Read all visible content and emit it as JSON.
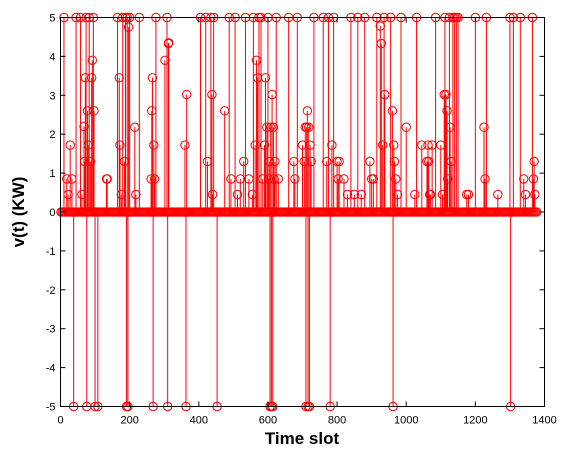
{
  "chart_data": {
    "type": "stem",
    "xlabel": "Time slot",
    "ylabel": "v(t) (KW)",
    "xlim": [
      0,
      1400
    ],
    "ylim": [
      -5,
      5
    ],
    "xticks": [
      "0",
      "200",
      "400",
      "600",
      "800",
      "1000",
      "1200",
      "1400"
    ],
    "yticks": [
      "-5",
      "-4",
      "-3",
      "-2",
      "-1",
      "0",
      "1",
      "2",
      "3",
      "4",
      "5"
    ],
    "grid": false,
    "color": "#ff0000",
    "marker": "open-circle",
    "x_range": [
      1,
      1380
    ],
    "baseline_value": 0,
    "stems": [
      {
        "x": 10,
        "v": 5
      },
      {
        "x": 18,
        "v": 0.85
      },
      {
        "x": 22,
        "v": 0.45
      },
      {
        "x": 28,
        "v": 1.72
      },
      {
        "x": 33,
        "v": 0.85
      },
      {
        "x": 38,
        "v": -5
      },
      {
        "x": 45,
        "v": 5
      },
      {
        "x": 58,
        "v": 5
      },
      {
        "x": 62,
        "v": 0.45
      },
      {
        "x": 68,
        "v": 2.2
      },
      {
        "x": 70,
        "v": 1.3
      },
      {
        "x": 72,
        "v": 3.45
      },
      {
        "x": 74,
        "v": 5
      },
      {
        "x": 76,
        "v": -5
      },
      {
        "x": 78,
        "v": 2.6
      },
      {
        "x": 80,
        "v": 1.72
      },
      {
        "x": 83,
        "v": 5
      },
      {
        "x": 87,
        "v": 1.3
      },
      {
        "x": 90,
        "v": 3.45
      },
      {
        "x": 92,
        "v": 3.9
      },
      {
        "x": 95,
        "v": 5
      },
      {
        "x": 97,
        "v": 2.6
      },
      {
        "x": 100,
        "v": -5
      },
      {
        "x": 108,
        "v": -5
      },
      {
        "x": 133,
        "v": 0.85
      },
      {
        "x": 135,
        "v": 0.85
      },
      {
        "x": 165,
        "v": 5
      },
      {
        "x": 170,
        "v": 3.45
      },
      {
        "x": 172,
        "v": 1.72
      },
      {
        "x": 176,
        "v": 0.45
      },
      {
        "x": 180,
        "v": 5
      },
      {
        "x": 185,
        "v": 1.3
      },
      {
        "x": 188,
        "v": 5
      },
      {
        "x": 191,
        "v": -5
      },
      {
        "x": 193,
        "v": 5
      },
      {
        "x": 195,
        "v": -5
      },
      {
        "x": 197,
        "v": 4.75
      },
      {
        "x": 200,
        "v": 5
      },
      {
        "x": 215,
        "v": 2.18
      },
      {
        "x": 218,
        "v": 0.45
      },
      {
        "x": 228,
        "v": 5
      },
      {
        "x": 262,
        "v": 0.85
      },
      {
        "x": 264,
        "v": 2.6
      },
      {
        "x": 266,
        "v": 3.45
      },
      {
        "x": 268,
        "v": -5
      },
      {
        "x": 270,
        "v": 1.72
      },
      {
        "x": 272,
        "v": 0.85
      },
      {
        "x": 276,
        "v": 5
      },
      {
        "x": 302,
        "v": 3.9
      },
      {
        "x": 308,
        "v": 5
      },
      {
        "x": 310,
        "v": -5
      },
      {
        "x": 312,
        "v": 4.33
      },
      {
        "x": 313,
        "v": 4.35
      },
      {
        "x": 360,
        "v": 1.72
      },
      {
        "x": 363,
        "v": -5
      },
      {
        "x": 365,
        "v": 3.02
      },
      {
        "x": 405,
        "v": 5
      },
      {
        "x": 420,
        "v": 5
      },
      {
        "x": 425,
        "v": 1.3
      },
      {
        "x": 435,
        "v": 5
      },
      {
        "x": 438,
        "v": 3.02
      },
      {
        "x": 440,
        "v": 0.45
      },
      {
        "x": 443,
        "v": 5
      },
      {
        "x": 453,
        "v": -5
      },
      {
        "x": 475,
        "v": 2.6
      },
      {
        "x": 488,
        "v": 5
      },
      {
        "x": 493,
        "v": 0.85
      },
      {
        "x": 505,
        "v": 5
      },
      {
        "x": 512,
        "v": 0.45
      },
      {
        "x": 520,
        "v": 0.85
      },
      {
        "x": 530,
        "v": 1.3
      },
      {
        "x": 535,
        "v": 5
      },
      {
        "x": 545,
        "v": 0.85
      },
      {
        "x": 555,
        "v": 0.45
      },
      {
        "x": 558,
        "v": 5
      },
      {
        "x": 563,
        "v": 1.72
      },
      {
        "x": 567,
        "v": 3.9
      },
      {
        "x": 570,
        "v": 3.45
      },
      {
        "x": 574,
        "v": 5
      },
      {
        "x": 580,
        "v": 5
      },
      {
        "x": 585,
        "v": 0.85
      },
      {
        "x": 590,
        "v": 1.72
      },
      {
        "x": 593,
        "v": 3.45
      },
      {
        "x": 597,
        "v": 2.18
      },
      {
        "x": 600,
        "v": 5
      },
      {
        "x": 602,
        "v": 0.85
      },
      {
        "x": 604,
        "v": 1.3
      },
      {
        "x": 606,
        "v": -5
      },
      {
        "x": 608,
        "v": 2.18
      },
      {
        "x": 610,
        "v": -5
      },
      {
        "x": 612,
        "v": 3.02
      },
      {
        "x": 614,
        "v": -5
      },
      {
        "x": 616,
        "v": 2.18
      },
      {
        "x": 618,
        "v": 0.85
      },
      {
        "x": 620,
        "v": 1.3
      },
      {
        "x": 624,
        "v": 5
      },
      {
        "x": 630,
        "v": 0.85
      },
      {
        "x": 660,
        "v": 5
      },
      {
        "x": 675,
        "v": 1.3
      },
      {
        "x": 678,
        "v": 0.85
      },
      {
        "x": 685,
        "v": 5
      },
      {
        "x": 700,
        "v": 1.72
      },
      {
        "x": 705,
        "v": 1.3
      },
      {
        "x": 708,
        "v": 2.18
      },
      {
        "x": 710,
        "v": -5
      },
      {
        "x": 712,
        "v": 2.18
      },
      {
        "x": 714,
        "v": 2.6
      },
      {
        "x": 716,
        "v": -5
      },
      {
        "x": 718,
        "v": 2.18
      },
      {
        "x": 720,
        "v": -5
      },
      {
        "x": 722,
        "v": 1.72
      },
      {
        "x": 725,
        "v": 1.3
      },
      {
        "x": 733,
        "v": 5
      },
      {
        "x": 760,
        "v": 5
      },
      {
        "x": 770,
        "v": 1.3
      },
      {
        "x": 775,
        "v": 5
      },
      {
        "x": 780,
        "v": -5
      },
      {
        "x": 785,
        "v": 1.72
      },
      {
        "x": 790,
        "v": 5
      },
      {
        "x": 800,
        "v": 1.3
      },
      {
        "x": 803,
        "v": 0.85
      },
      {
        "x": 806,
        "v": 1.3
      },
      {
        "x": 820,
        "v": 0.85
      },
      {
        "x": 830,
        "v": 0.45
      },
      {
        "x": 840,
        "v": 5
      },
      {
        "x": 850,
        "v": 0.45
      },
      {
        "x": 860,
        "v": 5
      },
      {
        "x": 870,
        "v": 0.45
      },
      {
        "x": 880,
        "v": 5
      },
      {
        "x": 895,
        "v": 1.3
      },
      {
        "x": 900,
        "v": 0.85
      },
      {
        "x": 905,
        "v": 0.85
      },
      {
        "x": 915,
        "v": 5
      },
      {
        "x": 925,
        "v": 4.78
      },
      {
        "x": 928,
        "v": 4.33
      },
      {
        "x": 932,
        "v": 1.72
      },
      {
        "x": 936,
        "v": 5
      },
      {
        "x": 938,
        "v": 3.02
      },
      {
        "x": 955,
        "v": 5
      },
      {
        "x": 960,
        "v": 2.6
      },
      {
        "x": 962,
        "v": -5
      },
      {
        "x": 964,
        "v": 1.72
      },
      {
        "x": 966,
        "v": 1.3
      },
      {
        "x": 970,
        "v": 0.85
      },
      {
        "x": 975,
        "v": 0.45
      },
      {
        "x": 985,
        "v": 5
      },
      {
        "x": 1000,
        "v": 2.18
      },
      {
        "x": 1025,
        "v": 0.45
      },
      {
        "x": 1030,
        "v": 5
      },
      {
        "x": 1045,
        "v": 1.72
      },
      {
        "x": 1060,
        "v": 1.3
      },
      {
        "x": 1063,
        "v": 1.72
      },
      {
        "x": 1065,
        "v": 1.3
      },
      {
        "x": 1068,
        "v": 0.45
      },
      {
        "x": 1070,
        "v": 0.45
      },
      {
        "x": 1075,
        "v": 1.72
      },
      {
        "x": 1085,
        "v": 5
      },
      {
        "x": 1100,
        "v": 1.72
      },
      {
        "x": 1105,
        "v": 0.45
      },
      {
        "x": 1110,
        "v": 3.02
      },
      {
        "x": 1112,
        "v": 5
      },
      {
        "x": 1115,
        "v": 3.02
      },
      {
        "x": 1118,
        "v": 2.6
      },
      {
        "x": 1120,
        "v": 0.85
      },
      {
        "x": 1125,
        "v": 5
      },
      {
        "x": 1127,
        "v": 2.18
      },
      {
        "x": 1130,
        "v": 1.3
      },
      {
        "x": 1135,
        "v": 5
      },
      {
        "x": 1140,
        "v": 5
      },
      {
        "x": 1145,
        "v": 5
      },
      {
        "x": 1150,
        "v": 5
      },
      {
        "x": 1175,
        "v": 0.45
      },
      {
        "x": 1180,
        "v": 0.45
      },
      {
        "x": 1200,
        "v": 5
      },
      {
        "x": 1225,
        "v": 2.18
      },
      {
        "x": 1228,
        "v": 0.85
      },
      {
        "x": 1232,
        "v": 5
      },
      {
        "x": 1265,
        "v": 0.45
      },
      {
        "x": 1300,
        "v": 5
      },
      {
        "x": 1302,
        "v": -5
      },
      {
        "x": 1310,
        "v": 5
      },
      {
        "x": 1330,
        "v": 5
      },
      {
        "x": 1340,
        "v": 0.85
      },
      {
        "x": 1345,
        "v": 0.45
      },
      {
        "x": 1365,
        "v": 5
      },
      {
        "x": 1368,
        "v": 0.85
      },
      {
        "x": 1370,
        "v": 1.3
      },
      {
        "x": 1372,
        "v": 0.45
      }
    ]
  }
}
